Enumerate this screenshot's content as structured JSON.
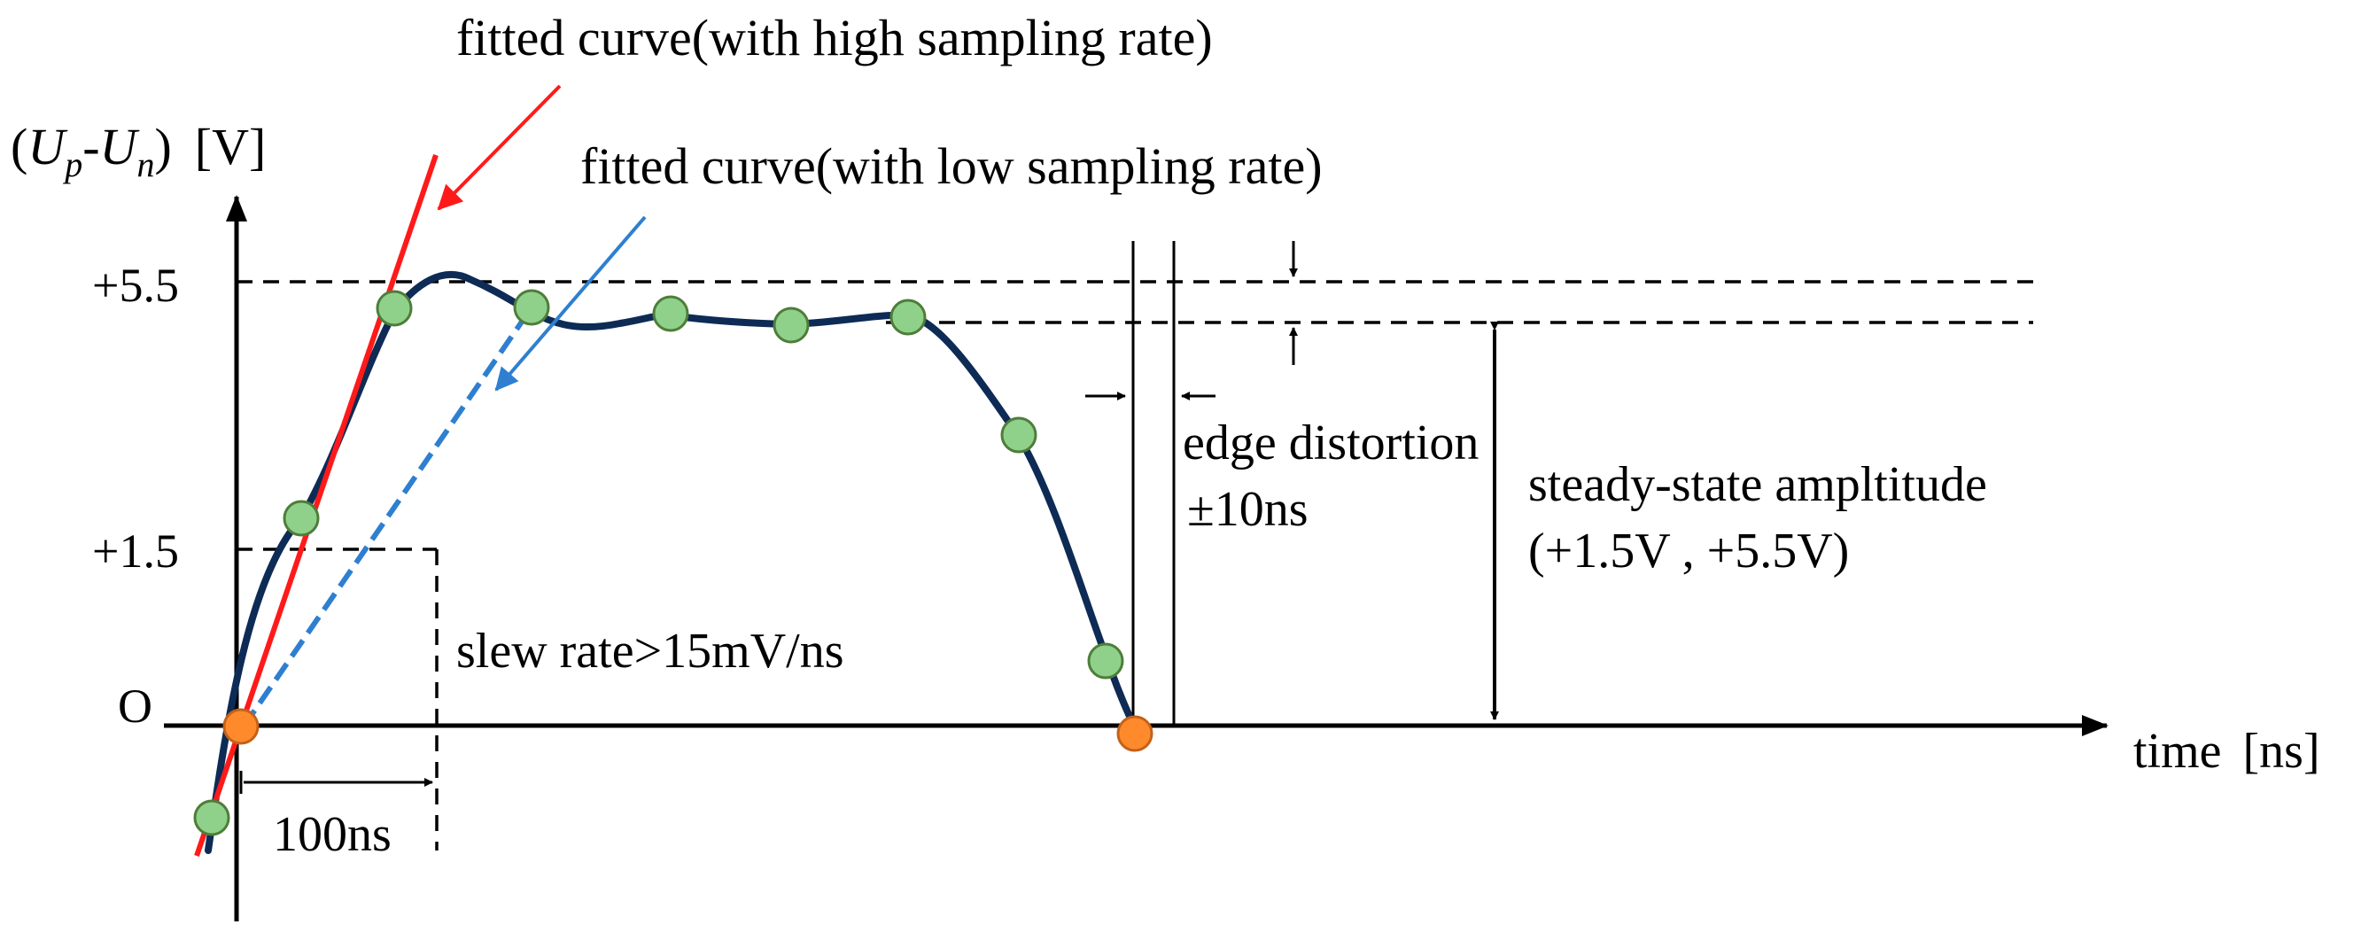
{
  "labels": {
    "high_rate_curve": "fitted curve(with high sampling rate)",
    "low_rate_curve": "fitted curve(with low sampling rate)",
    "y_axis_U": "U",
    "y_axis_p": "p",
    "y_axis_n": "n",
    "y_axis_open": "(",
    "y_axis_dash": "-",
    "y_axis_close": ")",
    "y_axis_unit": "[V]",
    "x_axis": "time",
    "x_axis_unit": "[ns]",
    "origin": "O",
    "tick_high": "+5.5",
    "tick_low": "+1.5",
    "slew_rate": "slew rate>15mV/ns",
    "interval": "100ns",
    "edge_distortion_line1": "edge distortion",
    "edge_distortion_line2": "±10ns",
    "steady_state_line1": "steady-state ampltitude",
    "steady_state_line2": "(+1.5V , +5.5V)"
  },
  "colors": {
    "signal_curve": "#0d2b55",
    "high_rate_fit": "#ff1a1a",
    "low_rate_fit": "#2f7fd0",
    "sample_fill": "#8fd18a",
    "sample_stroke": "#4e7d3a",
    "origin_point": "#ff8a2b",
    "axis": "#000000"
  },
  "icons": {
    "sample_point": "circle",
    "edge_point": "circle",
    "dimension_arrow": "arrow"
  }
}
